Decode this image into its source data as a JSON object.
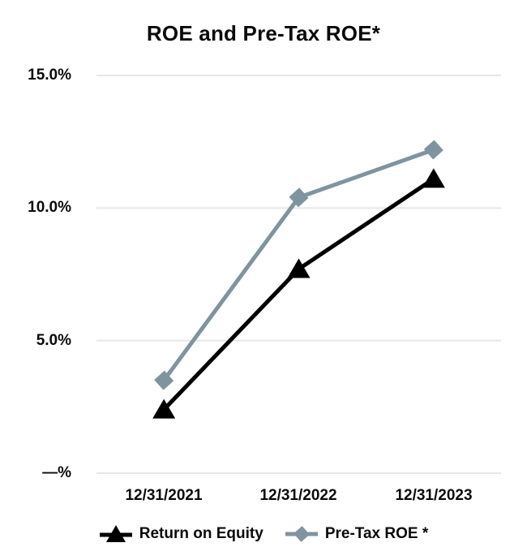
{
  "chart_data": {
    "type": "line",
    "title": "ROE and Pre-Tax ROE*",
    "categories": [
      "12/31/2021",
      "12/31/2022",
      "12/31/2023"
    ],
    "series": [
      {
        "name": "Return on Equity",
        "values": [
          2.4,
          7.7,
          11.1
        ],
        "color": "#000000",
        "marker": "triangle"
      },
      {
        "name": "Pre-Tax ROE *",
        "values": [
          3.5,
          10.4,
          12.2
        ],
        "color": "#7F949F",
        "marker": "diamond"
      }
    ],
    "xlabel": "",
    "ylabel": "",
    "ylim": [
      0,
      15
    ],
    "yticks": [
      15,
      10,
      5,
      0
    ],
    "ytick_labels_top_down": [
      "15.0%",
      "10.0%",
      "5.0%",
      "—%"
    ],
    "grid": "horizontal-only",
    "gridline_color": "#E7E7E7",
    "legend_position": "bottom",
    "background": "#FFFFFF"
  }
}
